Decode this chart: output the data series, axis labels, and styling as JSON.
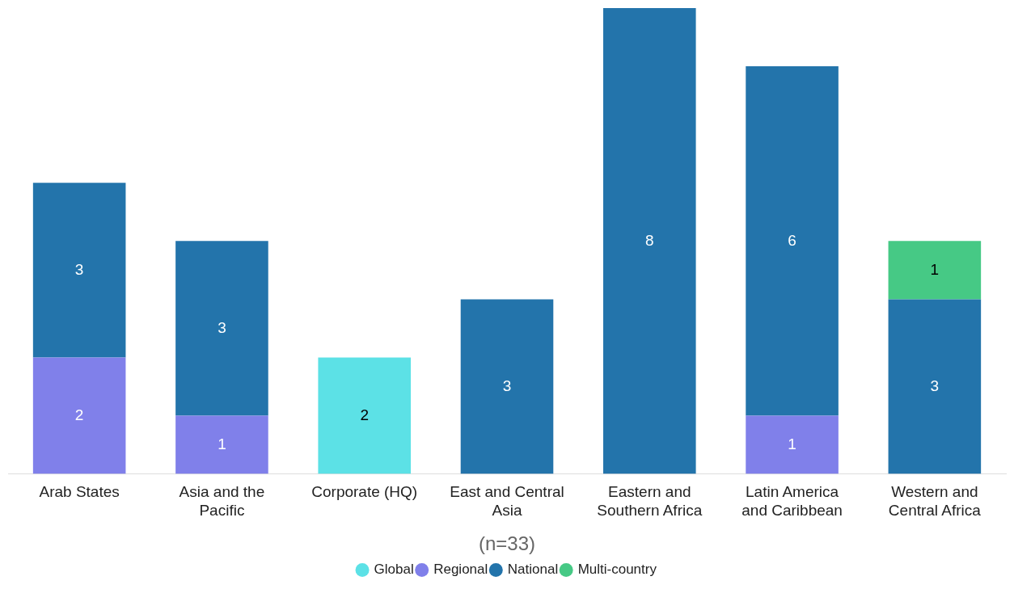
{
  "chart_data": {
    "type": "bar",
    "stacked": true,
    "data_labels": true,
    "legend": "bottom",
    "xlabel": "(n=33)",
    "categories": [
      "Arab States",
      "Asia and the Pacific",
      "Corporate (HQ)",
      "East and Central Asia",
      "Eastern and Southern Africa",
      "Latin America and Caribbean",
      "Western and Central Africa"
    ],
    "series": [
      {
        "name": "Global",
        "color": "#5ce1e6",
        "values": [
          null,
          null,
          2,
          null,
          null,
          null,
          null
        ]
      },
      {
        "name": "Regional",
        "color": "#8080ea",
        "values": [
          2,
          1,
          null,
          null,
          null,
          1,
          null
        ]
      },
      {
        "name": "National",
        "color": "#2374ab",
        "values": [
          3,
          3,
          null,
          3,
          8,
          6,
          3
        ]
      },
      {
        "name": "Multi-country",
        "color": "#46c985",
        "values": [
          null,
          null,
          null,
          null,
          null,
          null,
          1
        ]
      }
    ]
  }
}
